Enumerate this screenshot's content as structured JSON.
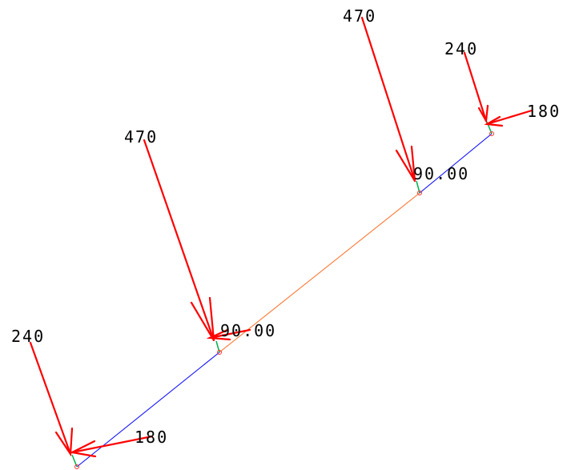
{
  "diagram": {
    "colors": {
      "background": "#ffffff",
      "load_arrow": "#ff0000",
      "member_blue": "#0000ff",
      "member_orange": "#ff6a20",
      "support_green": "#00b050",
      "node": "#ff3030",
      "text": "#000000"
    },
    "members": [
      {
        "id": "m1",
        "color": "#0000ff"
      },
      {
        "id": "m2",
        "color": "#ff6a20"
      },
      {
        "id": "m3",
        "color": "#0000ff"
      }
    ],
    "labels": {
      "left_vertical_load": "240",
      "left_horizontal_load": "180",
      "mid_left_vertical_load": "470",
      "mid_left_moment": "90.00",
      "mid_right_vertical_load": "470",
      "mid_right_moment": "90.00",
      "right_vertical_load": "240",
      "right_horizontal_load": "180"
    }
  }
}
